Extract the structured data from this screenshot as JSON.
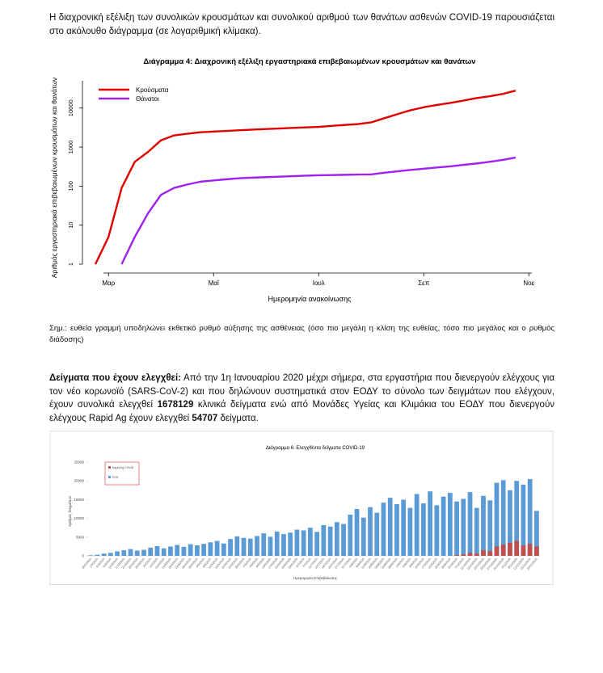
{
  "intro": "Η διαχρονική εξέλιξη των συνολικών κρουσμάτων και συνολικού αριθμού των θανάτων ασθενών COVID-19 παρουσιάζεται στο ακόλουθο διάγραμμα (σε λογαριθμική κλίμακα).",
  "note": "Σημ.: ευθεία γραμμή υποδηλώνει εκθετικό ρυθμό αύξησης της ασθένειας (όσο πιο μεγάλη η κλίση της ευθείας, τόσο πιο μεγάλος και ο ρυθμός διάδοσης)",
  "samples": {
    "heading": "Δείγματα που έχουν ελεγχθεί:",
    "text_1": " Από την 1η Ιανουαρίου 2020 μέχρι σήμερα, στα εργαστήρια που διενεργούν ελέγχους για τον νέο κορωνοϊό (SARS-CoV-2) και που δηλώνουν συστηματικά στον ΕΟΔΥ το σύνολο των δειγμάτων που ελέγχουν, έχουν συνολικά ελεγχθεί ",
    "number_1": 1678129,
    "text_2": " κλινικά δείγματα ενώ από Μονάδες Υγείας και Κλιμάκια του ΕΟΔΥ που διενεργούν ελέγχους Rapid Ag έχουν ελεγχθεί ",
    "number_2": 54707,
    "text_3": " δείγματα."
  },
  "chart_data": [
    {
      "type": "line",
      "title": "Διάγραμμα 4: Διαχρονική εξέλιξη εργαστηριακά επιβεβαιωμένων κρουσμάτων και θανάτων",
      "x_label": "Ημερομηνία ανακοίνωσης",
      "y_label": "Αριθμός εργαστηριακά επιβεβαιωμένων κρουσμάτων και θανάτων",
      "categories": [
        null,
        "Μαρ",
        null,
        null,
        null,
        null,
        null,
        null,
        null,
        "Μαΐ",
        null,
        null,
        null,
        null,
        null,
        null,
        null,
        "Ιουλ",
        null,
        null,
        null,
        null,
        null,
        null,
        null,
        "Σεπ",
        null,
        null,
        null,
        null,
        null,
        null,
        null,
        "Νοε"
      ],
      "series": [
        {
          "name": "Κρούσματα",
          "color": "#e00000",
          "values": [
            1,
            5,
            90,
            420,
            750,
            1500,
            2000,
            2200,
            2400,
            2500,
            2600,
            2700,
            2800,
            2900,
            3000,
            3100,
            3200,
            3300,
            3500,
            3700,
            3900,
            4300,
            5500,
            7000,
            8800,
            10500,
            12000,
            13500,
            15500,
            18000,
            20000,
            23000,
            28000,
            null
          ]
        },
        {
          "name": "Θάνατοι",
          "color": "#a020f0",
          "values": [
            null,
            null,
            1,
            5,
            20,
            60,
            90,
            110,
            130,
            140,
            150,
            160,
            165,
            170,
            175,
            180,
            185,
            190,
            192,
            195,
            198,
            200,
            220,
            240,
            260,
            280,
            300,
            320,
            350,
            380,
            420,
            470,
            540,
            null
          ]
        }
      ],
      "log_y": true,
      "ylim": [
        1,
        50000
      ],
      "yticks": [
        1,
        10,
        100,
        1000,
        10000
      ],
      "legend": "top-left"
    },
    {
      "type": "bar",
      "title": "Διάγραμμα 6: Ελεγχθέντα δείγματα COVID-19",
      "x_label": "Ημερομηνία Επιβεβαίωσης",
      "y_label": "Αριθμός δειγμάτων",
      "categories": [
        "26/2/2020",
        "1/3/2020",
        "5/3/2020",
        "9/3/2020",
        "13/3/2020",
        "17/3/2020",
        "21/3/2020",
        "25/3/2020",
        "29/3/2020",
        "2/4/2020",
        "6/4/2020",
        "10/4/2020",
        "14/4/2020",
        "18/4/2020",
        "22/4/2020",
        "26/4/2020",
        "30/4/2020",
        "4/5/2020",
        "8/5/2020",
        "12/5/2020",
        "16/5/2020",
        "20/5/2020",
        "24/5/2020",
        "28/5/2020",
        "1/6/2020",
        "5/6/2020",
        "9/6/2020",
        "13/6/2020",
        "17/6/2020",
        "21/6/2020",
        "25/6/2020",
        "29/6/2020",
        "3/7/2020",
        "7/7/2020",
        "11/7/2020",
        "15/7/2020",
        "19/7/2020",
        "23/7/2020",
        "27/7/2020",
        "31/7/2020",
        "4/8/2020",
        "8/8/2020",
        "12/8/2020",
        "16/8/2020",
        "20/8/2020",
        "24/8/2020",
        "28/8/2020",
        "1/9/2020",
        "5/9/2020",
        "9/9/2020",
        "13/9/2020",
        "17/9/2020",
        "21/9/2020",
        "25/9/2020",
        "29/9/2020",
        "3/10/2020",
        "7/10/2020",
        "11/10/2020",
        "15/10/2020",
        "19/10/2020",
        "23/10/2020",
        "27/10/2020",
        "31/10/2020",
        "4/11/2020",
        "8/11/2020",
        "12/11/2020",
        "16/11/2020",
        "20/11/2020"
      ],
      "series": [
        {
          "name": "PCR",
          "color": "#5b9bd5",
          "values": [
            150,
            300,
            600,
            800,
            1200,
            1500,
            1800,
            1400,
            1600,
            2200,
            2600,
            2000,
            2500,
            2900,
            2400,
            3100,
            2800,
            3200,
            3600,
            4000,
            3300,
            4500,
            5200,
            4800,
            4600,
            5300,
            6000,
            5100,
            6500,
            5800,
            6200,
            7000,
            6800,
            7500,
            6400,
            8200,
            7800,
            9000,
            8500,
            11000,
            12500,
            10200,
            13000,
            11500,
            14200,
            15500,
            13800,
            15000,
            12800,
            16500,
            14000,
            17200,
            13500,
            15800,
            16800,
            14500,
            15200,
            17000,
            12800,
            16000,
            14800,
            19500,
            20200,
            17500,
            20000,
            19000,
            20500,
            12000
          ]
        },
        {
          "name": "Rapid Ag COVID",
          "color": "#c0504d",
          "values": [
            0,
            0,
            0,
            0,
            0,
            0,
            0,
            0,
            0,
            0,
            0,
            0,
            0,
            0,
            0,
            0,
            0,
            0,
            0,
            0,
            0,
            0,
            0,
            0,
            0,
            0,
            0,
            0,
            0,
            0,
            0,
            0,
            0,
            0,
            0,
            0,
            0,
            0,
            0,
            0,
            0,
            0,
            0,
            0,
            0,
            0,
            0,
            0,
            0,
            0,
            0,
            0,
            0,
            0,
            0,
            200,
            400,
            800,
            600,
            1500,
            1200,
            2500,
            3000,
            3500,
            4000,
            2800,
            3200,
            2500
          ]
        }
      ],
      "ylim": [
        0,
        25000
      ],
      "yticks": [
        0,
        5000,
        10000,
        15000,
        20000,
        25000
      ],
      "legend": "top-left"
    }
  ]
}
